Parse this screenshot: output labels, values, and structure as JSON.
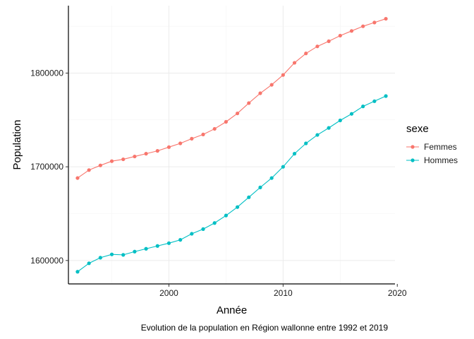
{
  "chart_data": {
    "type": "line",
    "title": "",
    "caption": "Evolution de la population en Région wallonne entre 1992 et 2019",
    "xlabel": "Année",
    "ylabel": "Population",
    "xlim": [
      1991.2,
      2019.8
    ],
    "ylim": [
      1575000,
      1872000
    ],
    "x_ticks": [
      2000,
      2010,
      2020
    ],
    "x_tick_labels": [
      "2000",
      "2010",
      "2020"
    ],
    "y_ticks": [
      1600000,
      1700000,
      1800000
    ],
    "y_tick_labels": [
      "1600000",
      "1700000",
      "1800000"
    ],
    "grid": true,
    "legend": {
      "title": "sexe",
      "placement": "right"
    },
    "x": [
      1992,
      1993,
      1994,
      1995,
      1996,
      1997,
      1998,
      1999,
      2000,
      2001,
      2002,
      2003,
      2004,
      2005,
      2006,
      2007,
      2008,
      2009,
      2010,
      2011,
      2012,
      2013,
      2014,
      2015,
      2016,
      2017,
      2018,
      2019
    ],
    "series": [
      {
        "name": "Femmes",
        "color": "#F8766D",
        "values": [
          1688000,
          1696500,
          1701500,
          1706000,
          1708000,
          1711000,
          1714000,
          1717000,
          1721000,
          1725000,
          1730000,
          1734500,
          1740500,
          1748000,
          1757000,
          1768000,
          1778500,
          1787500,
          1798000,
          1811000,
          1821000,
          1828500,
          1834000,
          1840000,
          1845000,
          1850000,
          1854000,
          1858000
        ]
      },
      {
        "name": "Hommes",
        "color": "#00BFC4",
        "values": [
          1588000,
          1597000,
          1603000,
          1606500,
          1606000,
          1609500,
          1612500,
          1615500,
          1618500,
          1622000,
          1628500,
          1633500,
          1640000,
          1648000,
          1657000,
          1667500,
          1678000,
          1688000,
          1700000,
          1714000,
          1725000,
          1734000,
          1741500,
          1749500,
          1756500,
          1764500,
          1770000,
          1775500
        ]
      }
    ]
  }
}
